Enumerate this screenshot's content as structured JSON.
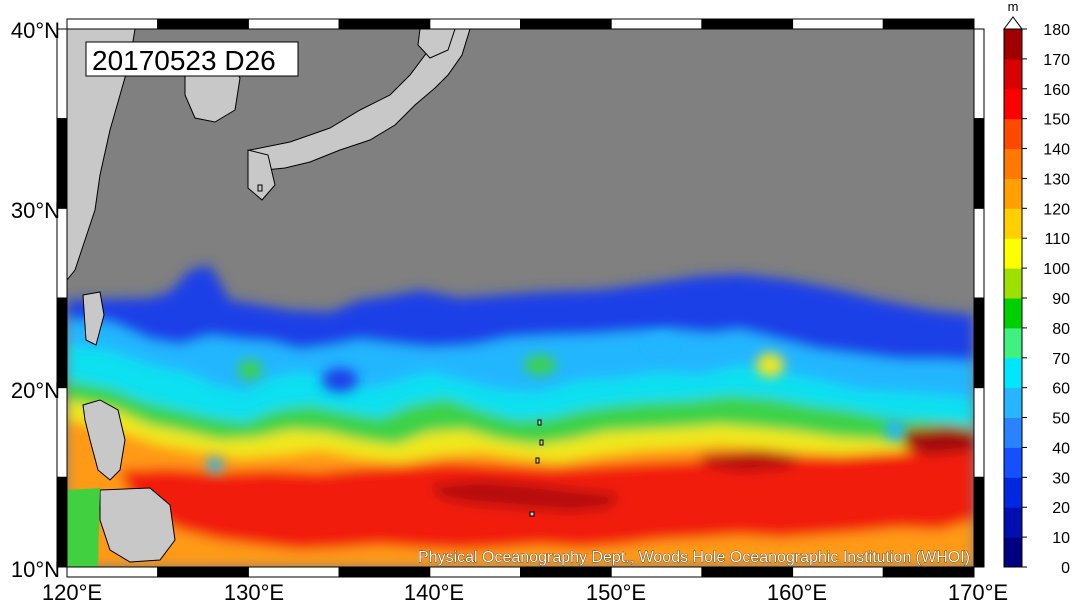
{
  "map": {
    "title": "20170523 D26",
    "credit": "Physical Oceanography Dept., Woods Hole Oceanographic Institution (WHOI)",
    "lon_labels": [
      "120°E",
      "130°E",
      "140°E",
      "150°E",
      "160°E",
      "170°E"
    ],
    "lat_labels": [
      "40°N",
      "30°N",
      "20°N",
      "10°N"
    ],
    "lon_range": [
      120,
      170
    ],
    "lat_range": [
      10,
      40
    ],
    "land_color": "#c8c8c8",
    "nodata_color": "#808080"
  },
  "colorbar": {
    "unit": "m",
    "ticks": [
      "0",
      "10",
      "20",
      "30",
      "40",
      "50",
      "60",
      "70",
      "80",
      "90",
      "100",
      "110",
      "120",
      "130",
      "140",
      "150",
      "160",
      "170",
      "180"
    ],
    "colors": [
      "#000080",
      "#0010b0",
      "#0028e0",
      "#1450ff",
      "#2a82ff",
      "#28b4ff",
      "#00e6ff",
      "#40f080",
      "#00d000",
      "#a0e000",
      "#ffff00",
      "#ffd000",
      "#ffa000",
      "#ff7800",
      "#ff4800",
      "#ff0000",
      "#d80000",
      "#a00000",
      "#600000",
      "#300000"
    ]
  }
}
